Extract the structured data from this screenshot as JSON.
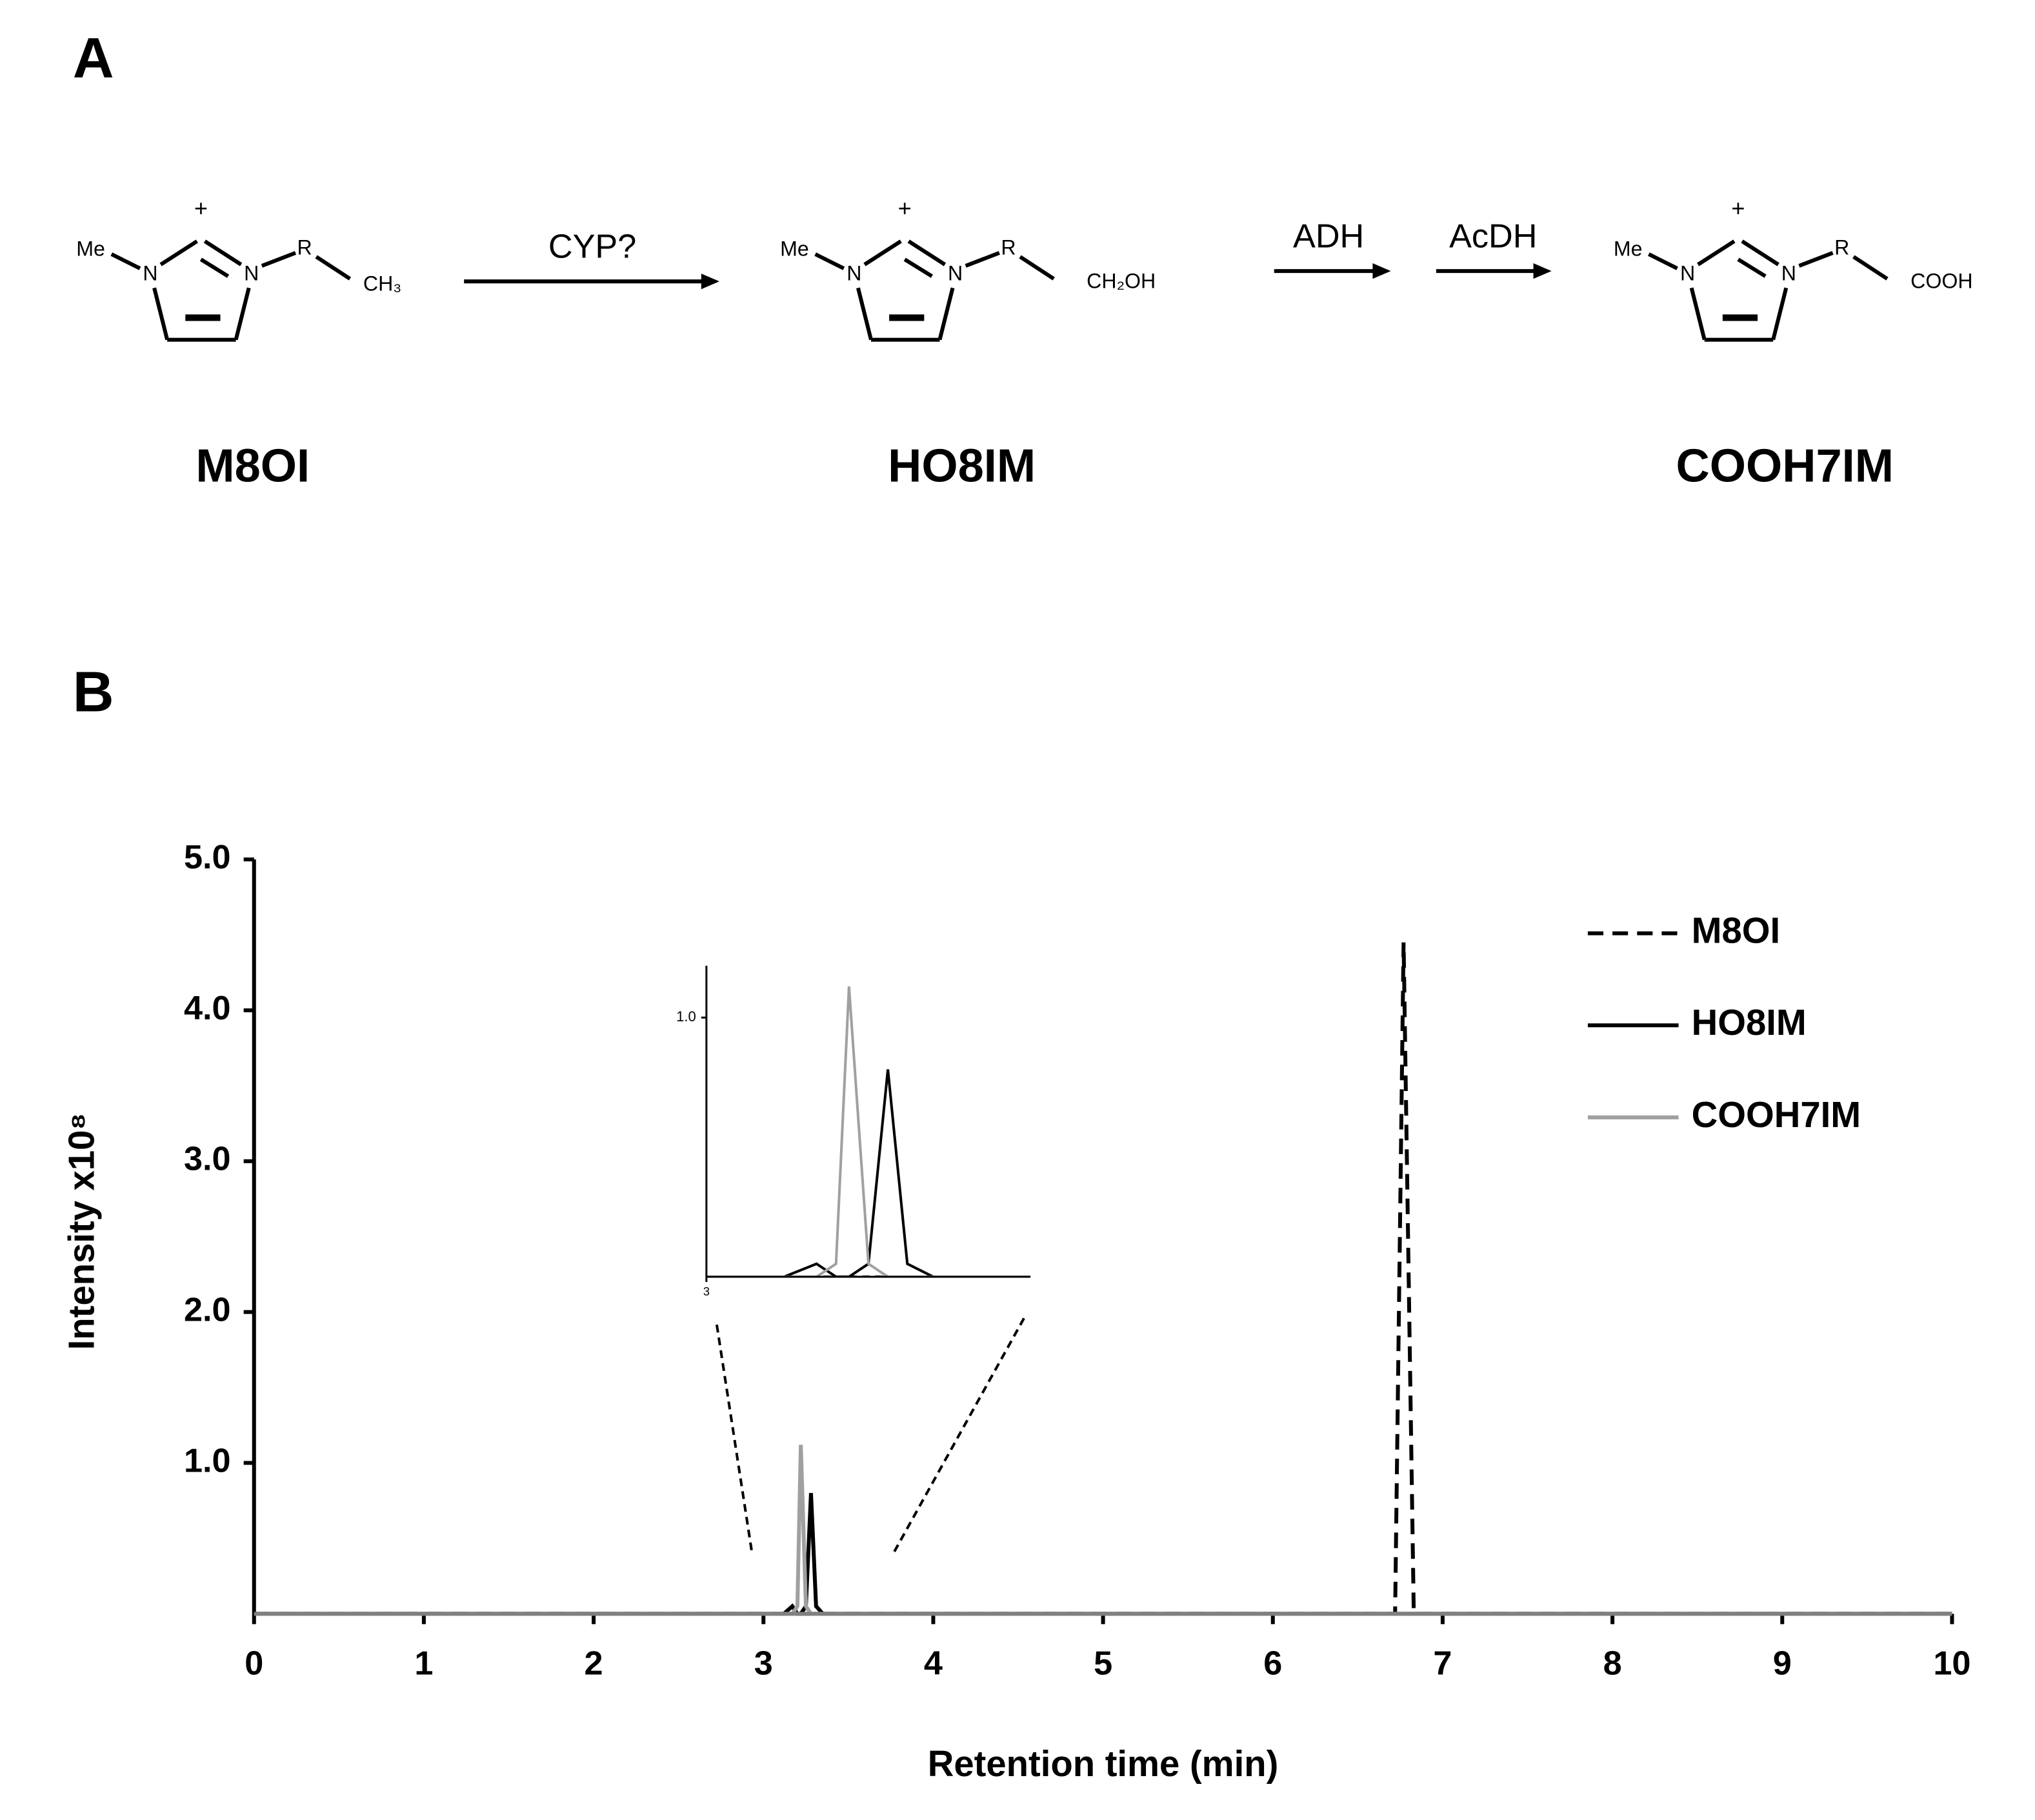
{
  "scheme": {
    "panel_label": "A",
    "ring_atoms": {
      "methyl": "Me",
      "nitrogen": "N",
      "substituent": "R",
      "charge": "+"
    },
    "compounds": [
      {
        "name": "M8OI",
        "end_group": "CH₃"
      },
      {
        "name": "HO8IM",
        "end_group": "CH₂OH"
      },
      {
        "name": "COOH7IM",
        "end_group": "COOH"
      }
    ],
    "enzymes": [
      "CYP?",
      "ADH",
      "AcDH"
    ]
  },
  "chart_data": {
    "type": "line",
    "panel_label": "B",
    "x_label": "Retention time (min)",
    "y_label": "Intensity x10⁸",
    "x": [
      0,
      3.12,
      3.17,
      3.2,
      3.22,
      3.25,
      3.28,
      3.31,
      3.35,
      6.72,
      6.77,
      6.83,
      10
    ],
    "series": [
      {
        "name": "M8OI",
        "color": "#000000",
        "dash": "dashed",
        "values": [
          0,
          0,
          0,
          0,
          0,
          0,
          0,
          0,
          0,
          0,
          4.45,
          0,
          0
        ]
      },
      {
        "name": "HO8IM",
        "color": "#000000",
        "dash": "solid",
        "values": [
          0,
          0,
          0.05,
          0,
          0,
          0.05,
          0.8,
          0.05,
          0,
          0,
          0,
          0,
          0
        ]
      },
      {
        "name": "COOH7IM",
        "color": "#a0a0a0",
        "dash": "solid",
        "values": [
          0,
          0,
          0,
          0.05,
          1.12,
          0.05,
          0,
          0,
          0,
          0,
          0,
          0,
          0
        ]
      }
    ],
    "xlim": [
      0,
      10
    ],
    "ylim": [
      0,
      5
    ],
    "xticks": [
      0,
      1,
      2,
      3,
      4,
      5,
      6,
      7,
      8,
      9,
      10
    ],
    "yticks": [
      {
        "value": 1,
        "label": "1.0"
      },
      {
        "value": 2,
        "label": "2.0"
      },
      {
        "value": 3,
        "label": "3.0"
      },
      {
        "value": 4,
        "label": "4.0"
      },
      {
        "value": 5,
        "label": "5.0"
      }
    ],
    "legend": "upper right",
    "inset": {
      "xlim": [
        3,
        3.5
      ],
      "ylim": [
        0,
        1.2
      ],
      "xticks": [
        3
      ],
      "yticks": [
        {
          "value": 1,
          "label": "1.0"
        }
      ]
    }
  }
}
